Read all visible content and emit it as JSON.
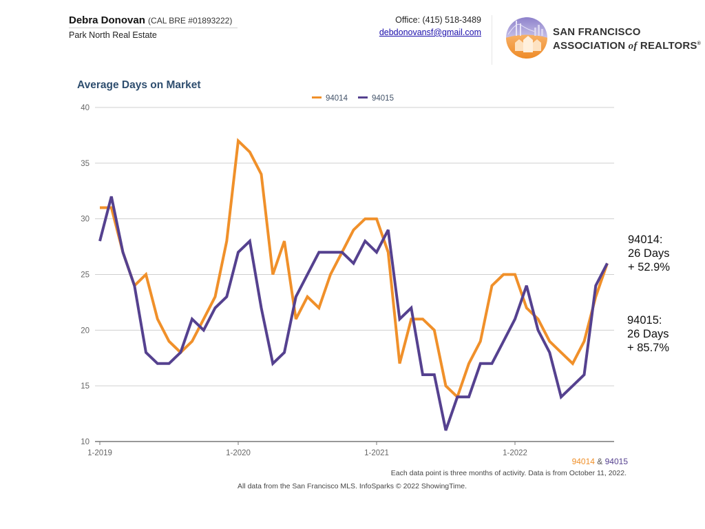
{
  "header": {
    "agent_name": "Debra Donovan",
    "agent_license": "(CAL BRE #01893222)",
    "company": "Park North Real Estate",
    "office_phone": "Office: (415) 518-3489",
    "email": "debdonovansf@gmail.com",
    "logo": {
      "icon": "sf-association-logo-icon",
      "line1": "San Francisco",
      "line2_a": "Association",
      "line2_of": "of",
      "line2_b": "Realtors",
      "registered": "®"
    }
  },
  "colors": {
    "series_94014": "#f0902a",
    "series_94015": "#55418f",
    "title": "#2f4e6f",
    "grid": "#cfcfcf"
  },
  "chart_data": {
    "type": "line",
    "title": "Average Days on Market",
    "xlabel": "",
    "ylabel": "",
    "ylim": [
      10,
      40
    ],
    "yticks": [
      10,
      15,
      20,
      25,
      30,
      35,
      40
    ],
    "grid": true,
    "legend_position": "top-center",
    "x_tick_labels": [
      "1-2019",
      "1-2020",
      "1-2021",
      "1-2022"
    ],
    "x_tick_indices": [
      0,
      12,
      24,
      36
    ],
    "x": [
      "1-2019",
      "2-2019",
      "3-2019",
      "4-2019",
      "5-2019",
      "6-2019",
      "7-2019",
      "8-2019",
      "9-2019",
      "10-2019",
      "11-2019",
      "12-2019",
      "1-2020",
      "2-2020",
      "3-2020",
      "4-2020",
      "5-2020",
      "6-2020",
      "7-2020",
      "8-2020",
      "9-2020",
      "10-2020",
      "11-2020",
      "12-2020",
      "1-2021",
      "2-2021",
      "3-2021",
      "4-2021",
      "5-2021",
      "6-2021",
      "7-2021",
      "8-2021",
      "9-2021",
      "10-2021",
      "11-2021",
      "12-2021",
      "1-2022",
      "2-2022",
      "3-2022",
      "4-2022",
      "5-2022",
      "6-2022",
      "7-2022",
      "8-2022",
      "9-2022"
    ],
    "series": [
      {
        "name": "94014",
        "color": "#f0902a",
        "values": [
          31,
          31,
          27,
          24,
          25,
          21,
          19,
          18,
          19,
          21,
          23,
          28,
          37,
          36,
          34,
          25,
          28,
          21,
          23,
          22,
          25,
          27,
          29,
          30,
          30,
          27,
          17,
          21,
          21,
          20,
          15,
          14,
          17,
          19,
          24,
          25,
          25,
          22,
          21,
          19,
          18,
          17,
          19,
          23,
          26
        ]
      },
      {
        "name": "94015",
        "color": "#55418f",
        "values": [
          28,
          32,
          27,
          24,
          18,
          17,
          17,
          18,
          21,
          20,
          22,
          23,
          27,
          28,
          22,
          17,
          18,
          23,
          25,
          27,
          27,
          27,
          26,
          28,
          27,
          29,
          21,
          22,
          16,
          16,
          11,
          14,
          14,
          17,
          17,
          19,
          21,
          24,
          20,
          18,
          14,
          15,
          16,
          24,
          26
        ]
      }
    ],
    "annotations": [
      {
        "series": "94014",
        "lines": [
          "94014:",
          "26 Days",
          "+ 52.9%"
        ]
      },
      {
        "series": "94015",
        "lines": [
          "94015:",
          "26 Days",
          "+ 85.7%"
        ]
      }
    ]
  },
  "footer": {
    "series_a": "94014",
    "amp": " & ",
    "series_b": "94015",
    "note": "Each data point is three months of activity. Data is from October 11, 2022.",
    "source": "All data from the San Francisco MLS. InfoSparks © 2022 ShowingTime."
  }
}
